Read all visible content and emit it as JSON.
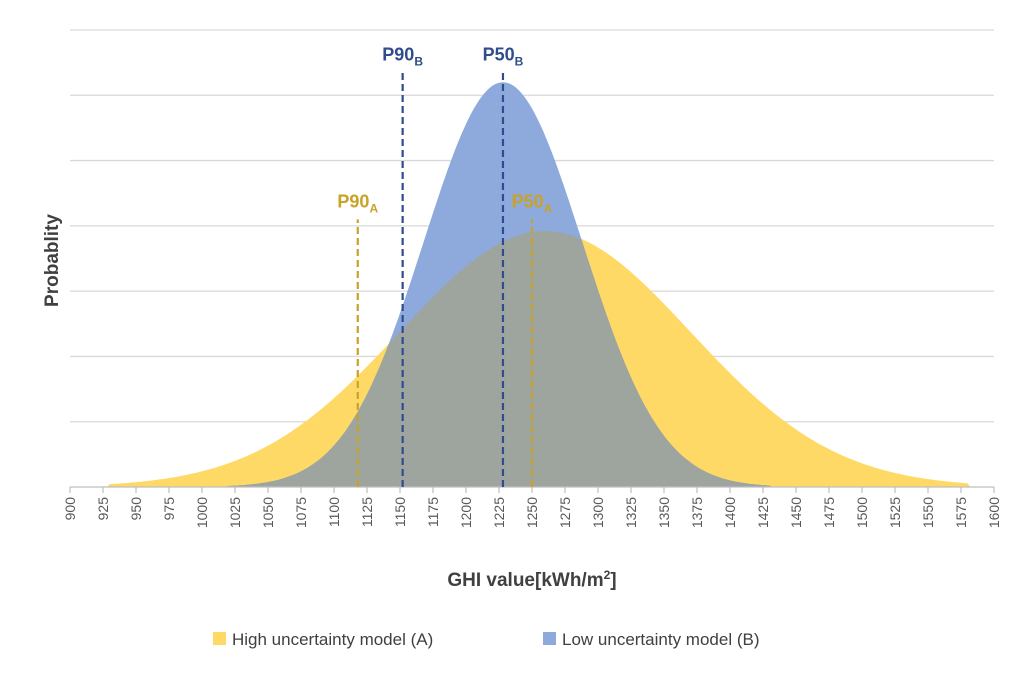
{
  "chart_data": {
    "type": "area",
    "title": "",
    "xlabel": "GHI value[kWh/m",
    "xlabel_sup": "2",
    "xlabel_end": "]",
    "ylabel": "Probablity",
    "xlim": [
      900,
      1600
    ],
    "ylim": [
      0,
      7
    ],
    "x_ticks": [
      900,
      925,
      950,
      975,
      1000,
      1025,
      1050,
      1075,
      1100,
      1125,
      1150,
      1175,
      1200,
      1225,
      1250,
      1275,
      1300,
      1325,
      1350,
      1375,
      1400,
      1425,
      1450,
      1475,
      1500,
      1525,
      1550,
      1575,
      1600
    ],
    "y_gridlines": [
      1,
      2,
      3,
      4,
      5,
      6,
      7
    ],
    "series": [
      {
        "name": "High uncertainty model (A)",
        "color": "#FFD966",
        "mean": 1260,
        "sd": 110,
        "peak": 3.92,
        "x_range": [
          930,
          1580
        ]
      },
      {
        "name": "Low uncertainty model (B)",
        "color": "#8EA9DB",
        "mean": 1228,
        "sd": 60,
        "peak": 6.2,
        "x_range": [
          1020,
          1430
        ]
      }
    ],
    "overlap_color": "#9EA59F",
    "reference_lines": [
      {
        "label": "P90",
        "sub": "A",
        "x": 1118,
        "top": 4.1,
        "color": "#C9A227"
      },
      {
        "label": "P50",
        "sub": "A",
        "x": 1250,
        "top": 4.1,
        "color": "#C9A227"
      },
      {
        "label": "P90",
        "sub": "B",
        "x": 1152,
        "top": 6.35,
        "color": "#2F4C8C"
      },
      {
        "label": "P50",
        "sub": "B",
        "x": 1228,
        "top": 6.35,
        "color": "#2F4C8C"
      }
    ],
    "legend": [
      {
        "label": "High uncertainty model (A)",
        "color": "#FFD966"
      },
      {
        "label": "Low uncertainty model (B)",
        "color": "#8EA9DB"
      }
    ],
    "legend_position": "bottom"
  }
}
